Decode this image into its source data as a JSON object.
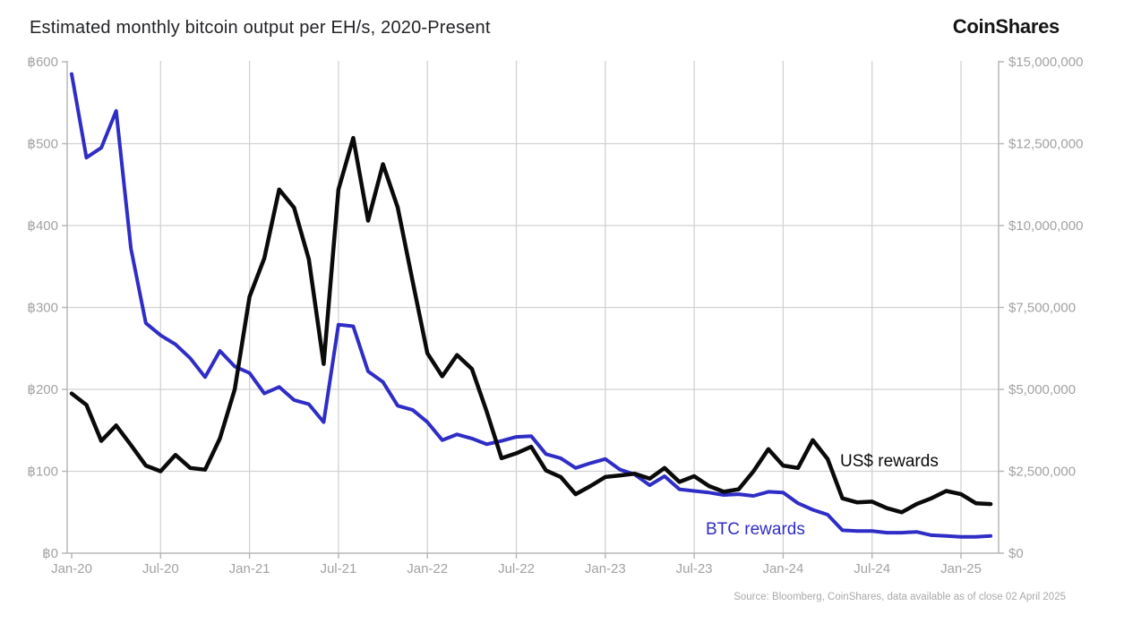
{
  "header": {
    "logo": "CoinShares"
  },
  "footer": {
    "source": "Source: Bloomberg, CoinShares, data available as of close 02 April 2025"
  },
  "colors": {
    "btc_line": "#2f2dc6",
    "usd_line": "#0a0a0a",
    "grid": "#d2d2d2",
    "axis": "#b8b8b8",
    "tick_text": "#a2a2a2"
  },
  "chart_data": {
    "type": "line",
    "title": "Estimated monthly bitcoin output per EH/s, 2020-Present",
    "grid": true,
    "legend_position": "inline-annotations",
    "months": [
      "Jan-20",
      "Feb-20",
      "Mar-20",
      "Apr-20",
      "May-20",
      "Jun-20",
      "Jul-20",
      "Aug-20",
      "Sep-20",
      "Oct-20",
      "Nov-20",
      "Dec-20",
      "Jan-21",
      "Feb-21",
      "Mar-21",
      "Apr-21",
      "May-21",
      "Jun-21",
      "Jul-21",
      "Aug-21",
      "Sep-21",
      "Oct-21",
      "Nov-21",
      "Dec-21",
      "Jan-22",
      "Feb-22",
      "Mar-22",
      "Apr-22",
      "May-22",
      "Jun-22",
      "Jul-22",
      "Aug-22",
      "Sep-22",
      "Oct-22",
      "Nov-22",
      "Dec-22",
      "Jan-23",
      "Feb-23",
      "Mar-23",
      "Apr-23",
      "May-23",
      "Jun-23",
      "Jul-23",
      "Aug-23",
      "Sep-23",
      "Oct-23",
      "Nov-23",
      "Dec-23",
      "Jan-24",
      "Feb-24",
      "Mar-24",
      "Apr-24",
      "May-24",
      "Jun-24",
      "Jul-24",
      "Aug-24",
      "Sep-24",
      "Oct-24",
      "Nov-24",
      "Dec-24",
      "Jan-25",
      "Feb-25",
      "Mar-25"
    ],
    "x_ticks": {
      "labels": [
        "Jan-20",
        "Jul-20",
        "Jan-21",
        "Jul-21",
        "Jan-22",
        "Jul-22",
        "Jan-23",
        "Jul-23",
        "Jan-24",
        "Jul-24",
        "Jan-25"
      ],
      "month_indices": [
        0,
        6,
        12,
        18,
        24,
        30,
        36,
        42,
        48,
        54,
        60
      ]
    },
    "y_left_axis": {
      "range": [
        0,
        600
      ],
      "tick_values": [
        0,
        100,
        200,
        300,
        400,
        500,
        600
      ],
      "tick_labels": [
        "฿0",
        "฿100",
        "฿200",
        "฿300",
        "฿400",
        "฿500",
        "฿600"
      ]
    },
    "y_right_axis": {
      "range": [
        0,
        15000000
      ],
      "tick_values": [
        0,
        2500000,
        5000000,
        7500000,
        10000000,
        12500000,
        15000000
      ],
      "tick_labels": [
        "$0",
        "$2,500,000",
        "$5,000,000",
        "$7,500,000",
        "$10,000,000",
        "$12,500,000",
        "$15,000,000"
      ]
    },
    "series": [
      {
        "name": "BTC rewards",
        "axis": "left",
        "color": "#2f2dc6",
        "values": [
          585,
          483,
          495,
          540,
          372,
          281,
          266,
          255,
          238,
          215,
          247,
          228,
          220,
          195,
          203,
          187,
          182,
          160,
          279,
          277,
          222,
          209,
          180,
          175,
          160,
          138,
          145,
          140,
          133,
          137,
          142,
          143,
          121,
          116,
          104,
          110,
          115,
          102,
          96,
          83,
          94,
          78,
          76,
          74,
          71,
          72,
          70,
          75,
          74,
          61,
          53,
          47,
          28,
          27,
          27,
          25,
          25,
          26,
          22,
          21,
          20,
          20,
          21
        ]
      },
      {
        "name": "US$ rewards",
        "axis": "right",
        "color": "#0a0a0a",
        "values": [
          4875000,
          4525000,
          3425000,
          3900000,
          3300000,
          2675000,
          2500000,
          3000000,
          2600000,
          2550000,
          3500000,
          5000000,
          7825000,
          9000000,
          11100000,
          10550000,
          8975000,
          5775000,
          11100000,
          12675000,
          10150000,
          11875000,
          10550000,
          8300000,
          6100000,
          5400000,
          6050000,
          5625000,
          4325000,
          2900000,
          3050000,
          3250000,
          2525000,
          2325000,
          1800000,
          2050000,
          2325000,
          2375000,
          2425000,
          2275000,
          2600000,
          2175000,
          2350000,
          2050000,
          1875000,
          1950000,
          2500000,
          3175000,
          2675000,
          2600000,
          3450000,
          2875000,
          1675000,
          1550000,
          1575000,
          1375000,
          1250000,
          1500000,
          1675000,
          1900000,
          1800000,
          1525000,
          1500000
        ]
      }
    ]
  }
}
